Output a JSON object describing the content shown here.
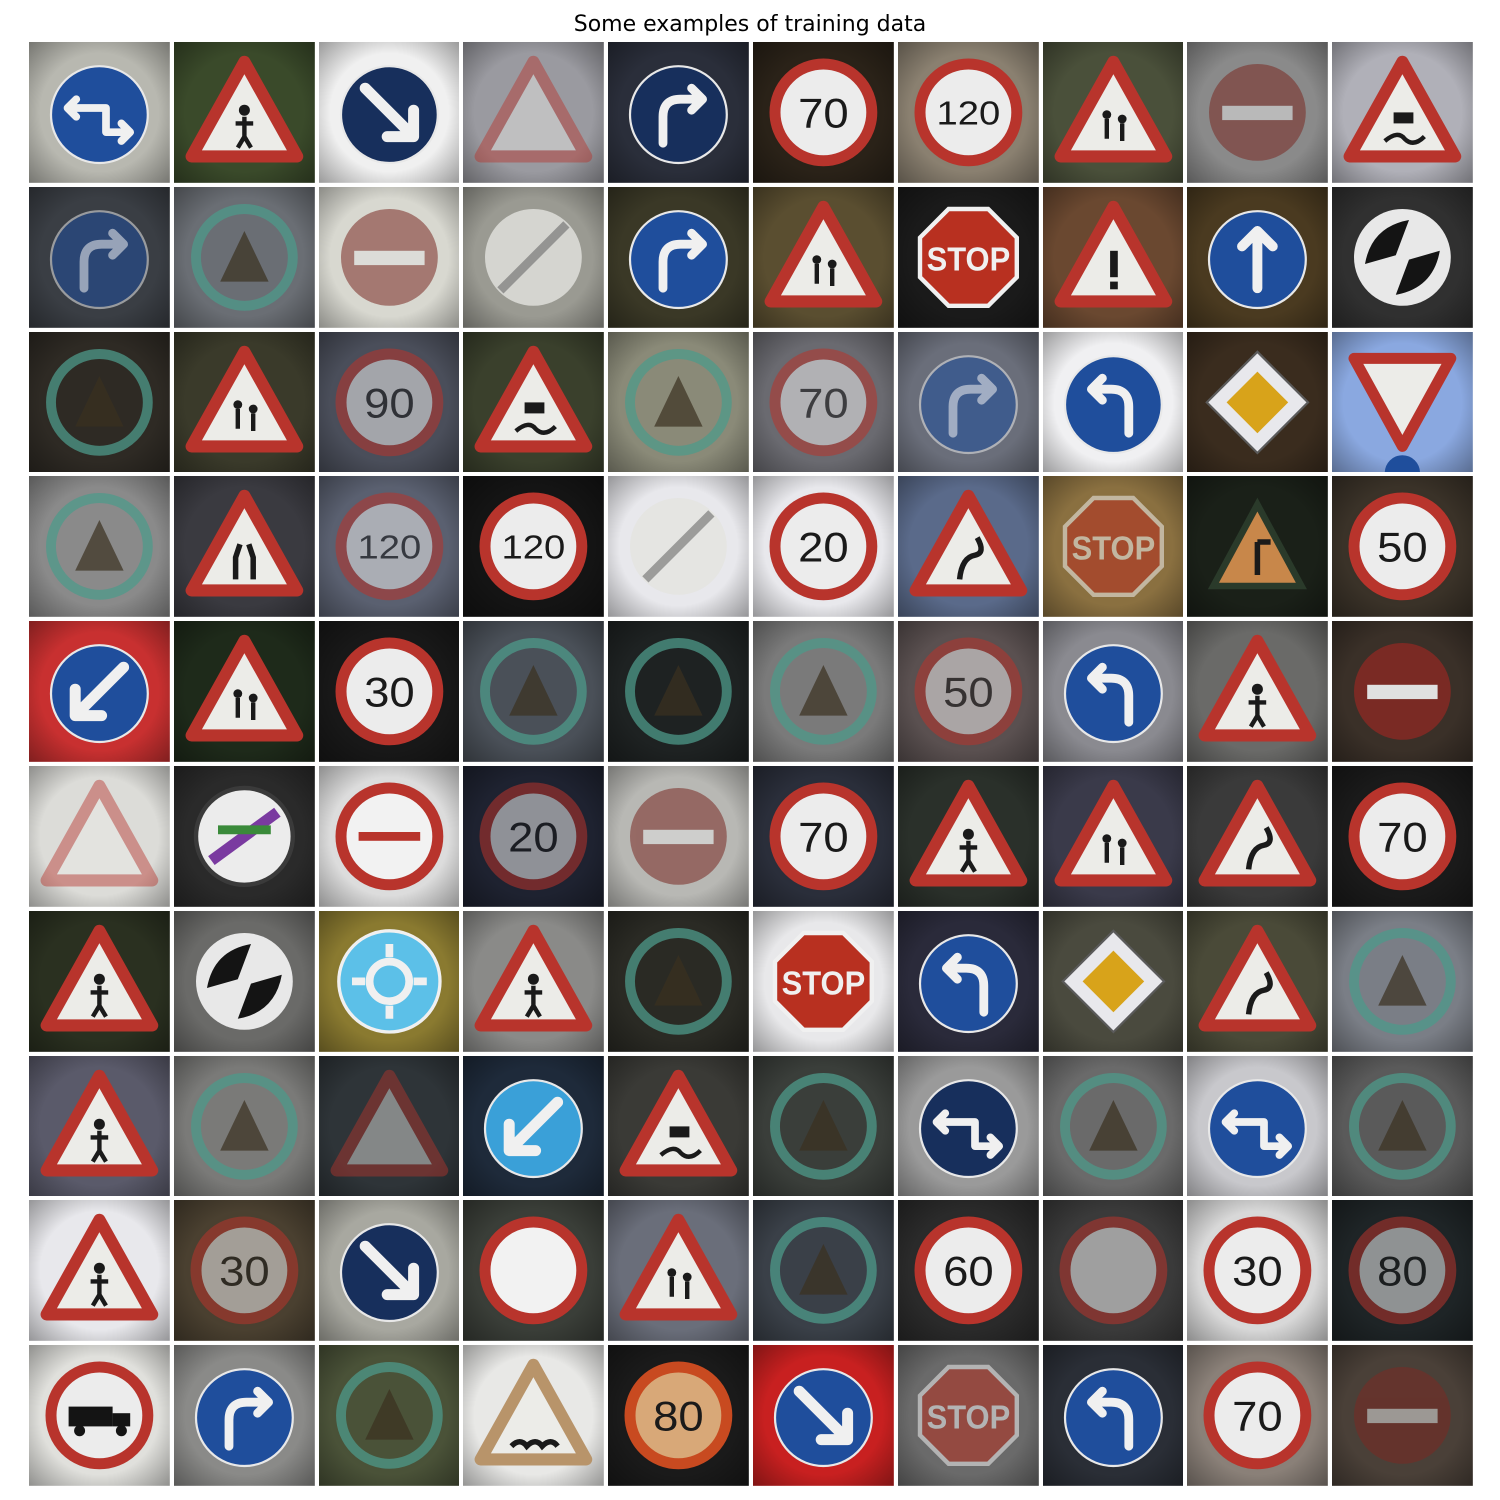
{
  "title": "Some examples of training data",
  "colors": {
    "red": "#b8342c",
    "darkred": "#7a2a24",
    "blue": "#1f4e9c",
    "lightblue": "#3aa0d8",
    "navy": "#172f5c",
    "stopred": "#b83020",
    "yellow": "#d8a31a",
    "teal": "#4e9a8a"
  },
  "grid": {
    "rows": 10,
    "cols": 10,
    "cells": [
      {
        "kind": "blue_round",
        "bg": "#b8b8b0",
        "glyph": "arrow_lr"
      },
      {
        "kind": "tri",
        "bg": "#3a4a2a",
        "glyph": "person"
      },
      {
        "kind": "blue_round",
        "bg": "#f0f0f0",
        "glyph": "arrow_dr",
        "dark": true
      },
      {
        "kind": "tri_faded",
        "bg": "#9a9aa0"
      },
      {
        "kind": "blue_round",
        "bg": "#2a2e3a",
        "glyph": "turn_right",
        "dark": true
      },
      {
        "kind": "speed",
        "bg": "#2a2218",
        "text": "70"
      },
      {
        "kind": "speed",
        "bg": "#8a8070",
        "text": "120"
      },
      {
        "kind": "tri",
        "bg": "#4a503a",
        "glyph": "kids"
      },
      {
        "kind": "noentry",
        "bg": "#8a8a8a",
        "faded": true
      },
      {
        "kind": "tri",
        "bg": "#b0b0b8",
        "glyph": "slip"
      },
      {
        "kind": "blue_round",
        "bg": "#3a3e44",
        "glyph": "turn_right",
        "faded": true
      },
      {
        "kind": "teal_round",
        "bg": "#6a6e74"
      },
      {
        "kind": "noentry",
        "bg": "#d8d8d0",
        "faded": true
      },
      {
        "kind": "end",
        "bg": "#9a9a92"
      },
      {
        "kind": "blue_round",
        "bg": "#3a3826",
        "glyph": "turn_right"
      },
      {
        "kind": "tri",
        "bg": "#5a4e30",
        "glyph": "kids"
      },
      {
        "kind": "stop",
        "bg": "#1a1a1a",
        "text": "STOP"
      },
      {
        "kind": "tri",
        "bg": "#6a4830",
        "glyph": "bang"
      },
      {
        "kind": "blue_round",
        "bg": "#4a3a20",
        "glyph": "arrow_up"
      },
      {
        "kind": "end_black",
        "bg": "#303030"
      },
      {
        "kind": "teal_round",
        "bg": "#2e2a24"
      },
      {
        "kind": "tri",
        "bg": "#3a3a2a",
        "glyph": "kids"
      },
      {
        "kind": "speed",
        "bg": "#4a4e5a",
        "text": "90",
        "faded": true
      },
      {
        "kind": "tri",
        "bg": "#3a402c",
        "glyph": "slip"
      },
      {
        "kind": "teal_round",
        "bg": "#8a8a78"
      },
      {
        "kind": "speed",
        "bg": "#6a6a70",
        "text": "70",
        "faded": true
      },
      {
        "kind": "blue_round",
        "bg": "#6a6e7a",
        "glyph": "turn_right",
        "faded": true
      },
      {
        "kind": "blue_round",
        "bg": "#f0f0f2",
        "glyph": "turn_left"
      },
      {
        "kind": "diamond",
        "bg": "#3a2c1e"
      },
      {
        "kind": "yield",
        "bg": "#8aa8e0"
      },
      {
        "kind": "teal_round",
        "bg": "#8a8a8a"
      },
      {
        "kind": "tri",
        "bg": "#3a3a40",
        "glyph": "narrow"
      },
      {
        "kind": "speed",
        "bg": "#5a6070",
        "text": "120",
        "faded": true
      },
      {
        "kind": "speed",
        "bg": "#141414",
        "text": "120"
      },
      {
        "kind": "end",
        "bg": "#e8e8ec"
      },
      {
        "kind": "speed",
        "bg": "#e8e8ec",
        "text": "20"
      },
      {
        "kind": "tri",
        "bg": "#5a6a8a",
        "glyph": "curve"
      },
      {
        "kind": "stop",
        "bg": "#8a7040",
        "text": "STOP",
        "faded": true
      },
      {
        "kind": "tri_orange",
        "bg": "#1a2018"
      },
      {
        "kind": "speed",
        "bg": "#3a3228",
        "text": "50"
      },
      {
        "kind": "blue_round",
        "bg": "#c83030",
        "glyph": "arrow_dl"
      },
      {
        "kind": "tri",
        "bg": "#1e2a1a",
        "glyph": "kids"
      },
      {
        "kind": "speed",
        "bg": "#181818",
        "text": "30"
      },
      {
        "kind": "teal_round",
        "bg": "#4a5058"
      },
      {
        "kind": "teal_round",
        "bg": "#1e2222"
      },
      {
        "kind": "teal_round",
        "bg": "#7a7a7a"
      },
      {
        "kind": "speed",
        "bg": "#5a5050",
        "text": "50",
        "faded": true
      },
      {
        "kind": "blue_round",
        "bg": "#8a8a90",
        "glyph": "turn_left"
      },
      {
        "kind": "tri",
        "bg": "#6a6a68",
        "glyph": "person"
      },
      {
        "kind": "noentry",
        "bg": "#3a3028"
      },
      {
        "kind": "tri_faded",
        "bg": "#dcdcd8"
      },
      {
        "kind": "novehicles_purple",
        "bg": "#2a2a2a"
      },
      {
        "kind": "noentry_white",
        "bg": "#dcdcdc"
      },
      {
        "kind": "speed",
        "bg": "#1e2230",
        "text": "20",
        "faded": true
      },
      {
        "kind": "noentry",
        "bg": "#b8b8b4",
        "faded": true
      },
      {
        "kind": "speed",
        "bg": "#2a2e3a",
        "text": "70"
      },
      {
        "kind": "tri",
        "bg": "#2a302a",
        "glyph": "person"
      },
      {
        "kind": "tri",
        "bg": "#3a3a4a",
        "glyph": "kids"
      },
      {
        "kind": "tri",
        "bg": "#3a3a3a",
        "glyph": "curve"
      },
      {
        "kind": "speed",
        "bg": "#1a1a1a",
        "text": "70"
      },
      {
        "kind": "tri",
        "bg": "#2a3020",
        "glyph": "person"
      },
      {
        "kind": "end_black",
        "bg": "#6a6a68"
      },
      {
        "kind": "round_light",
        "bg": "#8a7a30"
      },
      {
        "kind": "tri",
        "bg": "#8a8a88",
        "glyph": "person"
      },
      {
        "kind": "teal_round",
        "bg": "#2a2a24"
      },
      {
        "kind": "stop",
        "bg": "#e8e8ea",
        "text": "STOP"
      },
      {
        "kind": "blue_round",
        "bg": "#2a2a3a",
        "glyph": "turn_left"
      },
      {
        "kind": "diamond",
        "bg": "#4a4a3e"
      },
      {
        "kind": "tri",
        "bg": "#4a4a38",
        "glyph": "curve"
      },
      {
        "kind": "teal_round",
        "bg": "#7a7e86"
      },
      {
        "kind": "tri",
        "bg": "#5a5a6a",
        "glyph": "person"
      },
      {
        "kind": "teal_round",
        "bg": "#7a7a78"
      },
      {
        "kind": "tri_faded",
        "bg": "#2e3438"
      },
      {
        "kind": "blue_round",
        "bg": "#1e2a3a",
        "glyph": "arrow_dl",
        "light": true
      },
      {
        "kind": "tri",
        "bg": "#3a3a36",
        "glyph": "slip"
      },
      {
        "kind": "teal_round",
        "bg": "#3a3e3a"
      },
      {
        "kind": "blue_round",
        "bg": "#9a9a9a",
        "glyph": "arrow_lr",
        "dark": true
      },
      {
        "kind": "teal_round",
        "bg": "#6a6a6a"
      },
      {
        "kind": "blue_round",
        "bg": "#c8c8cc",
        "glyph": "arrow_lr"
      },
      {
        "kind": "teal_round",
        "bg": "#5a5a5a"
      },
      {
        "kind": "tri",
        "bg": "#e8e8ec",
        "glyph": "person"
      },
      {
        "kind": "speed",
        "bg": "#4a4030",
        "text": "30",
        "faded": true
      },
      {
        "kind": "blue_round",
        "bg": "#a8a8a0",
        "glyph": "arrow_dr",
        "dark": true
      },
      {
        "kind": "noentry_white",
        "bg": "#3a3e38",
        "plain": true
      },
      {
        "kind": "tri",
        "bg": "#6a6e7a",
        "glyph": "kids"
      },
      {
        "kind": "teal_round",
        "bg": "#3a4048"
      },
      {
        "kind": "speed",
        "bg": "#2a2a2a",
        "text": "60"
      },
      {
        "kind": "noentry_white",
        "bg": "#3a3a3a",
        "plain": true,
        "faded": true
      },
      {
        "kind": "speed",
        "bg": "#d8d8d8",
        "text": "30"
      },
      {
        "kind": "speed",
        "bg": "#1e2426",
        "text": "80",
        "faded": true
      },
      {
        "kind": "truck",
        "bg": "#e0e0dc"
      },
      {
        "kind": "blue_round",
        "bg": "#8a8a88",
        "glyph": "turn_right"
      },
      {
        "kind": "teal_round",
        "bg": "#4a5238"
      },
      {
        "kind": "tri_bump",
        "bg": "#e8e8e6"
      },
      {
        "kind": "speed",
        "bg": "#1a1a1a",
        "text": "80",
        "orange": true
      },
      {
        "kind": "blue_round",
        "bg": "#c82020",
        "glyph": "arrow_dr"
      },
      {
        "kind": "stop",
        "bg": "#6a6a6a",
        "text": "STOP",
        "faded": true
      },
      {
        "kind": "blue_round",
        "bg": "#2a2e36",
        "glyph": "turn_left"
      },
      {
        "kind": "speed",
        "bg": "#8a8078",
        "text": "70"
      },
      {
        "kind": "noentry",
        "bg": "#4a4038",
        "faded": true
      }
    ]
  }
}
